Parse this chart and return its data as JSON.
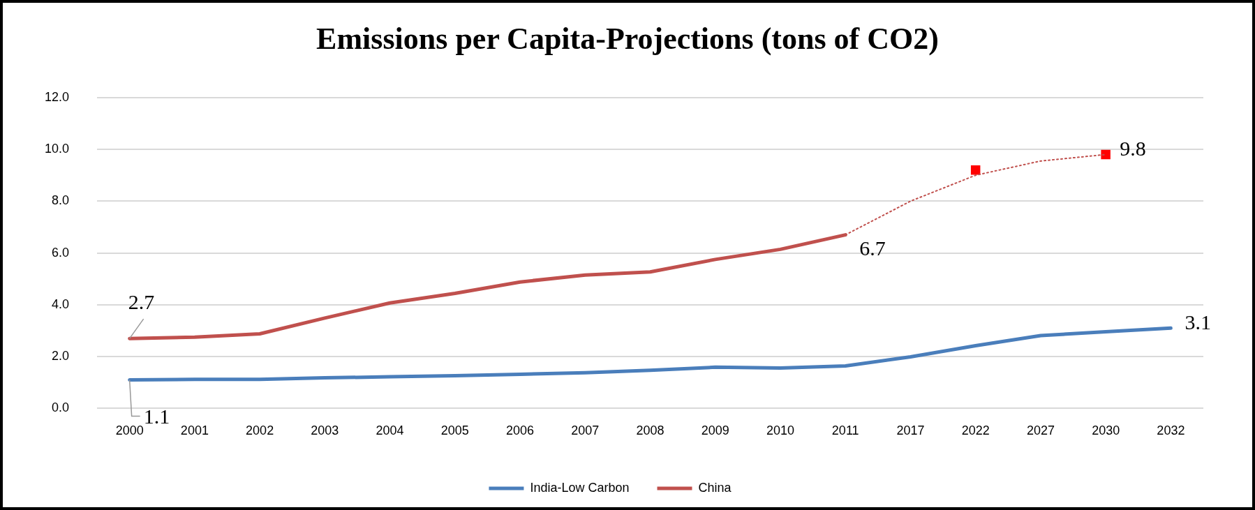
{
  "chart_data": {
    "type": "line",
    "title": "Emissions per Capita-Projections (tons of CO2)",
    "categories": [
      "2000",
      "2001",
      "2002",
      "2003",
      "2004",
      "2005",
      "2006",
      "2007",
      "2008",
      "2009",
      "2010",
      "2011",
      "2017",
      "2022",
      "2027",
      "2030",
      "2032"
    ],
    "series": [
      {
        "name": "India-Low Carbon",
        "color": "#4a7ebb",
        "values": [
          1.1,
          1.12,
          1.12,
          1.18,
          1.22,
          1.26,
          1.32,
          1.38,
          1.47,
          1.59,
          1.56,
          1.64,
          1.99,
          2.42,
          2.81,
          2.96,
          3.1
        ],
        "value_labels": [
          "1.1",
          null,
          null,
          null,
          null,
          null,
          null,
          null,
          null,
          null,
          null,
          null,
          null,
          null,
          null,
          null,
          "3.1"
        ]
      },
      {
        "name": "China",
        "color": "#c0504d",
        "values": [
          2.7,
          2.75,
          2.88,
          3.49,
          4.07,
          4.44,
          4.88,
          5.15,
          5.27,
          5.75,
          6.14,
          6.7,
          null,
          null,
          null,
          null,
          null
        ],
        "value_labels": [
          "2.7",
          null,
          null,
          null,
          null,
          null,
          null,
          null,
          null,
          null,
          null,
          "6.7",
          null,
          null,
          null,
          null,
          null
        ]
      },
      {
        "color": "#c0504d",
        "line_style": "dotted",
        "values": [
          null,
          null,
          null,
          null,
          null,
          null,
          null,
          null,
          null,
          null,
          null,
          6.7,
          8.0,
          9.0,
          9.55,
          9.8,
          null
        ],
        "value_labels": [
          null,
          null,
          null,
          null,
          null,
          null,
          null,
          null,
          null,
          null,
          null,
          null,
          null,
          null,
          null,
          "9.8",
          null
        ]
      },
      {
        "type": "scatter",
        "color": "#ff0000",
        "marker": "square",
        "values": [
          null,
          null,
          null,
          null,
          null,
          null,
          null,
          null,
          null,
          null,
          null,
          null,
          null,
          9.2,
          null,
          9.8,
          null
        ]
      }
    ],
    "ylim": [
      0,
      12
    ],
    "yticks": [
      {
        "value": 0,
        "label": "0.0"
      },
      {
        "value": 2,
        "label": "2.0"
      },
      {
        "value": 4,
        "label": "4.0"
      },
      {
        "value": 6,
        "label": "6.0"
      },
      {
        "value": 8,
        "label": "8.0"
      },
      {
        "value": 10,
        "label": "10.0"
      },
      {
        "value": 12,
        "label": "12.0"
      }
    ],
    "grid": "y",
    "legend": "bottom"
  }
}
